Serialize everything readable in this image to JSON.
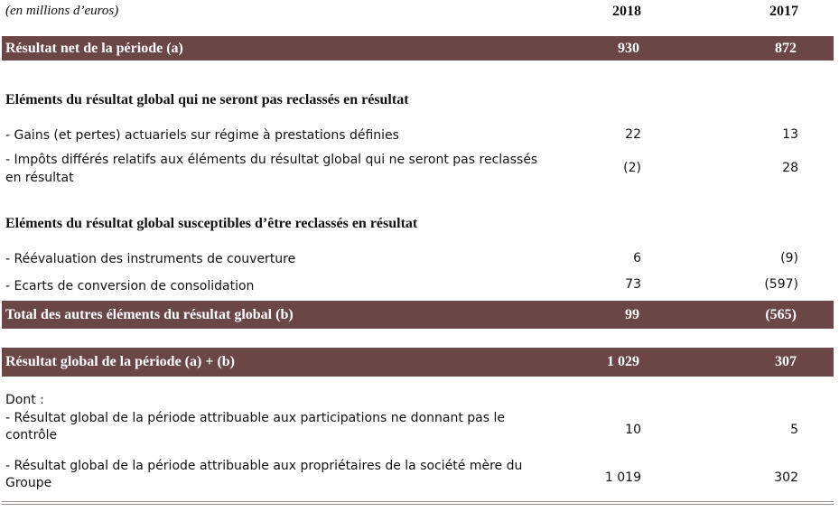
{
  "header": {
    "units": "(en millions d’euros)",
    "year_2018": "2018",
    "year_2017": "2017"
  },
  "rows": {
    "net_result": {
      "label": "Résultat net de la période (a)",
      "v2018": "930",
      "v2017": "872"
    },
    "section_not_reclassified": "Eléments du résultat global qui ne seront pas reclassés en résultat",
    "actuarial": {
      "label": "- Gains (et pertes) actuariels sur régime à prestations définies",
      "v2018": "22",
      "v2017": "13"
    },
    "deferred_tax": {
      "label_line1": "- Impôts différés relatifs aux éléments du résultat global qui ne seront pas reclassés",
      "label_line2": "en résultat",
      "v2018": "(2)",
      "v2017": "28"
    },
    "section_reclassifiable": "Eléments du résultat global susceptibles d’être reclassés en résultat",
    "hedging": {
      "label": "- Réévaluation des instruments de couverture",
      "v2018": "6",
      "v2017": "(9)"
    },
    "conversion": {
      "label": "- Ecarts de conversion de consolidation",
      "v2018": "73",
      "v2017": "(597)"
    },
    "total_other": {
      "label": "Total des autres éléments du résultat global (b)",
      "v2018": "99",
      "v2017": "(565)"
    },
    "global_result": {
      "label": "Résultat global de la période (a) + (b)",
      "v2018": "1 029",
      "v2017": "307"
    },
    "dont": "Dont :",
    "minority": {
      "label_line1": "- Résultat global de la période attribuable aux participations ne donnant pas le",
      "label_line2": "contrôle",
      "v2018": "10",
      "v2017": "5"
    },
    "owners": {
      "label_line1": "- Résultat global de la période attribuable aux propriétaires de la société mère du",
      "label_line2": "Groupe",
      "v2018": "1 019",
      "v2017": "302"
    }
  },
  "colors": {
    "band": "#6b4646",
    "band_text": "#ffffff"
  }
}
